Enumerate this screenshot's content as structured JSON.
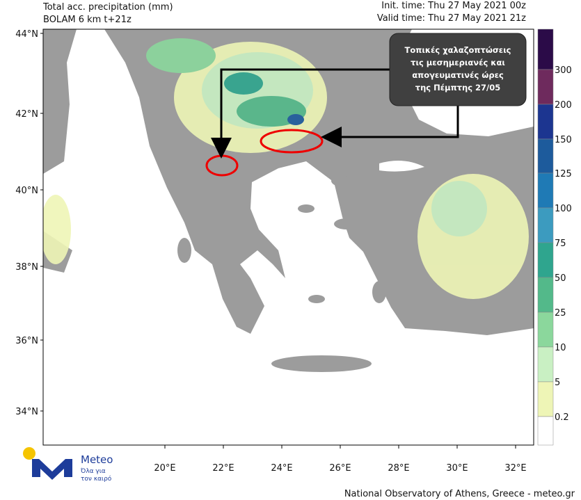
{
  "header": {
    "title": "Total acc. precipitation (mm)",
    "subtitle": "BOLAM 6 km t+21z",
    "init_time": "Init. time: Thu 27 May 2021 00z",
    "valid_time": "Valid time: Thu 27 May 2021 21z"
  },
  "annotation": {
    "lines": [
      "Τοπικές χαλαζοπτώσεις",
      "τις μεσημεριανές και",
      "απογευματινές ώρες",
      "της Πέμπτης 27/05"
    ]
  },
  "axes": {
    "lat_labels": [
      "44°N",
      "42°N",
      "40°N",
      "38°N",
      "36°N",
      "34°N"
    ],
    "lon_labels": [
      "20°E",
      "22°E",
      "24°E",
      "26°E",
      "28°E",
      "30°E",
      "32°E"
    ]
  },
  "colorbar": {
    "levels": [
      300,
      200,
      150,
      125,
      100,
      75,
      50,
      25,
      10,
      5,
      0.2
    ],
    "colors": [
      "#2b0b48",
      "#6e2a5d",
      "#1c3590",
      "#1d5b9c",
      "#1f7ab5",
      "#3c9bbf",
      "#2fa58e",
      "#53b98a",
      "#8bd79c",
      "#c9f0c3",
      "#eef5b6",
      "#ffffff"
    ]
  },
  "logo": {
    "name": "Meteo",
    "slogan": [
      "Όλα για",
      "τον καιρό"
    ]
  },
  "footer": {
    "credit": "National Observatory of Athens, Greece - meteo.gr"
  }
}
